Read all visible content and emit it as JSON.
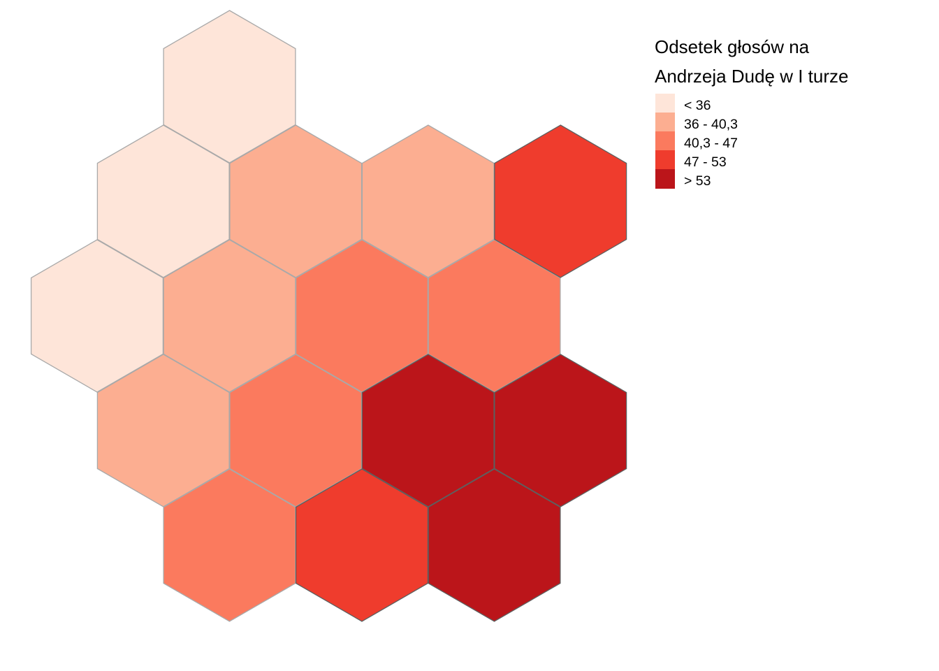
{
  "legend": {
    "title_line1": "Odsetek głosów na",
    "title_line2": "Andrzeja Dudę w I turze",
    "classes": [
      {
        "label": "< 36",
        "color": "#fee5d9"
      },
      {
        "label": "36 - 40,3",
        "color": "#fcae91"
      },
      {
        "label": "40,3 - 47",
        "color": "#fb7a5e"
      },
      {
        "label": "47 - 53",
        "color": "#ef3c2d"
      },
      {
        "label": "> 53",
        "color": "#bb151a"
      }
    ]
  },
  "regions": [
    {
      "col": 2,
      "row": 0,
      "class": 0
    },
    {
      "col": 1,
      "row": 1,
      "class": 0
    },
    {
      "col": 3,
      "row": 1,
      "class": 1
    },
    {
      "col": 5,
      "row": 1,
      "class": 1
    },
    {
      "col": 7,
      "row": 1,
      "class": 3
    },
    {
      "col": 0,
      "row": 2,
      "class": 0
    },
    {
      "col": 2,
      "row": 2,
      "class": 1
    },
    {
      "col": 4,
      "row": 2,
      "class": 2
    },
    {
      "col": 6,
      "row": 2,
      "class": 2
    },
    {
      "col": 1,
      "row": 3,
      "class": 1
    },
    {
      "col": 3,
      "row": 3,
      "class": 2
    },
    {
      "col": 5,
      "row": 3,
      "class": 4
    },
    {
      "col": 7,
      "row": 3,
      "class": 4
    },
    {
      "col": 2,
      "row": 4,
      "class": 2
    },
    {
      "col": 4,
      "row": 4,
      "class": 3
    },
    {
      "col": 6,
      "row": 4,
      "class": 4
    }
  ]
}
